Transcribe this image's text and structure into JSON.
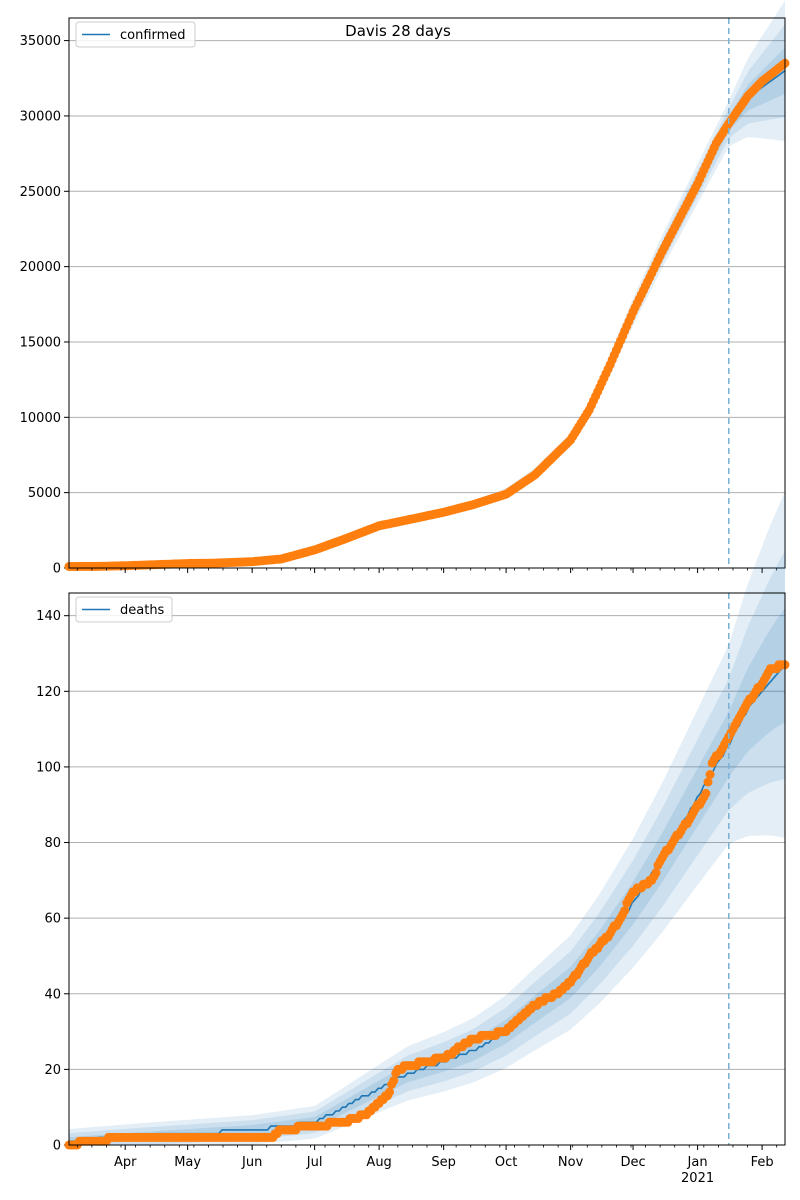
{
  "title": "Davis 28 days",
  "colors": {
    "model": "#1f77b4",
    "observed": "#ff7f0e",
    "band": "#1f77b4",
    "grid": "#b0b0b0",
    "forecast_line": "#7fb3d5"
  },
  "x_axis": {
    "month_labels": [
      "Apr",
      "May",
      "Jun",
      "Jul",
      "Aug",
      "Sep",
      "Oct",
      "Nov",
      "Dec",
      "Jan",
      "Feb"
    ],
    "year_label": "2021"
  },
  "chart_data": [
    {
      "type": "line",
      "legend": "confirmed",
      "legend_position": "top-left",
      "grid": "horizontal",
      "ylim": [
        0,
        36500
      ],
      "yticks": [
        0,
        5000,
        10000,
        15000,
        20000,
        25000,
        30000,
        35000
      ],
      "xlim": [
        "2020-03-05",
        "2021-02-12"
      ],
      "forecast_start": "2021-01-16",
      "model_curve": [
        [
          "2020-03-05",
          100
        ],
        [
          "2020-04-01",
          150
        ],
        [
          "2020-05-01",
          300
        ],
        [
          "2020-06-01",
          420
        ],
        [
          "2020-06-20",
          700
        ],
        [
          "2020-07-01",
          1250
        ],
        [
          "2020-07-15",
          1900
        ],
        [
          "2020-08-01",
          2800
        ],
        [
          "2020-08-15",
          3200
        ],
        [
          "2020-09-01",
          3700
        ],
        [
          "2020-09-15",
          4200
        ],
        [
          "2020-10-01",
          5000
        ],
        [
          "2020-10-15",
          6300
        ],
        [
          "2020-11-01",
          8500
        ],
        [
          "2020-11-10",
          10500
        ],
        [
          "2020-11-20",
          13500
        ],
        [
          "2020-12-01",
          17000
        ],
        [
          "2020-12-15",
          21000
        ],
        [
          "2021-01-01",
          25500
        ],
        [
          "2021-01-16",
          29500
        ],
        [
          "2021-01-25",
          31200
        ],
        [
          "2021-02-05",
          32300
        ],
        [
          "2021-02-12",
          33000
        ]
      ],
      "observed": [
        [
          "2020-03-05",
          100
        ],
        [
          "2020-03-20",
          110
        ],
        [
          "2020-04-01",
          150
        ],
        [
          "2020-04-15",
          220
        ],
        [
          "2020-05-01",
          300
        ],
        [
          "2020-05-15",
          330
        ],
        [
          "2020-06-01",
          420
        ],
        [
          "2020-06-15",
          600
        ],
        [
          "2020-07-01",
          1200
        ],
        [
          "2020-07-15",
          1900
        ],
        [
          "2020-08-01",
          2800
        ],
        [
          "2020-08-15",
          3200
        ],
        [
          "2020-09-01",
          3700
        ],
        [
          "2020-09-15",
          4200
        ],
        [
          "2020-10-01",
          4900
        ],
        [
          "2020-10-15",
          6200
        ],
        [
          "2020-11-01",
          8500
        ],
        [
          "2020-11-10",
          10500
        ],
        [
          "2020-11-20",
          13500
        ],
        [
          "2020-12-01",
          17000
        ],
        [
          "2020-12-15",
          21000
        ],
        [
          "2021-01-01",
          25500
        ],
        [
          "2021-01-10",
          28200
        ],
        [
          "2021-01-16",
          29500
        ],
        [
          "2021-01-25",
          31300
        ],
        [
          "2021-02-01",
          32300
        ],
        [
          "2021-02-12",
          33500
        ]
      ]
    },
    {
      "type": "line",
      "legend": "deaths",
      "legend_position": "top-left",
      "grid": "horizontal",
      "ylim": [
        0,
        146
      ],
      "yticks": [
        0,
        20,
        40,
        60,
        80,
        100,
        120,
        140
      ],
      "xlim": [
        "2020-03-05",
        "2021-02-12"
      ],
      "forecast_start": "2021-01-16",
      "model_curve": [
        [
          "2020-03-05",
          1
        ],
        [
          "2020-04-01",
          2
        ],
        [
          "2020-05-01",
          3
        ],
        [
          "2020-06-01",
          4
        ],
        [
          "2020-07-01",
          6
        ],
        [
          "2020-07-15",
          10
        ],
        [
          "2020-08-01",
          15
        ],
        [
          "2020-08-15",
          19
        ],
        [
          "2020-09-01",
          22
        ],
        [
          "2020-09-15",
          25
        ],
        [
          "2020-10-01",
          30
        ],
        [
          "2020-10-15",
          36
        ],
        [
          "2020-11-01",
          43
        ],
        [
          "2020-11-15",
          52
        ],
        [
          "2020-12-01",
          64
        ],
        [
          "2020-12-15",
          76
        ],
        [
          "2021-01-01",
          92
        ],
        [
          "2021-01-16",
          106
        ],
        [
          "2021-01-25",
          115
        ],
        [
          "2021-02-05",
          123
        ],
        [
          "2021-02-12",
          127
        ]
      ],
      "observed": [
        [
          "2020-03-05",
          0
        ],
        [
          "2020-03-15",
          1
        ],
        [
          "2020-04-01",
          2
        ],
        [
          "2020-05-01",
          2
        ],
        [
          "2020-06-10",
          2
        ],
        [
          "2020-06-15",
          4
        ],
        [
          "2020-07-01",
          5
        ],
        [
          "2020-07-15",
          6
        ],
        [
          "2020-07-25",
          8
        ],
        [
          "2020-08-05",
          13
        ],
        [
          "2020-08-10",
          20
        ],
        [
          "2020-08-15",
          21
        ],
        [
          "2020-09-01",
          23
        ],
        [
          "2020-09-15",
          28
        ],
        [
          "2020-10-01",
          30
        ],
        [
          "2020-10-15",
          37
        ],
        [
          "2020-10-25",
          40
        ],
        [
          "2020-11-01",
          43
        ],
        [
          "2020-11-10",
          50
        ],
        [
          "2020-11-20",
          56
        ],
        [
          "2020-11-25",
          60
        ],
        [
          "2020-12-01",
          67
        ],
        [
          "2020-12-10",
          70
        ],
        [
          "2020-12-15",
          76
        ],
        [
          "2020-12-20",
          80
        ],
        [
          "2020-12-28",
          86
        ],
        [
          "2021-01-05",
          93
        ],
        [
          "2021-01-08",
          101
        ],
        [
          "2021-01-12",
          104
        ],
        [
          "2021-01-16",
          108
        ],
        [
          "2021-01-20",
          112
        ],
        [
          "2021-01-25",
          117
        ],
        [
          "2021-02-01",
          122
        ],
        [
          "2021-02-05",
          126
        ],
        [
          "2021-02-12",
          127
        ]
      ]
    }
  ]
}
